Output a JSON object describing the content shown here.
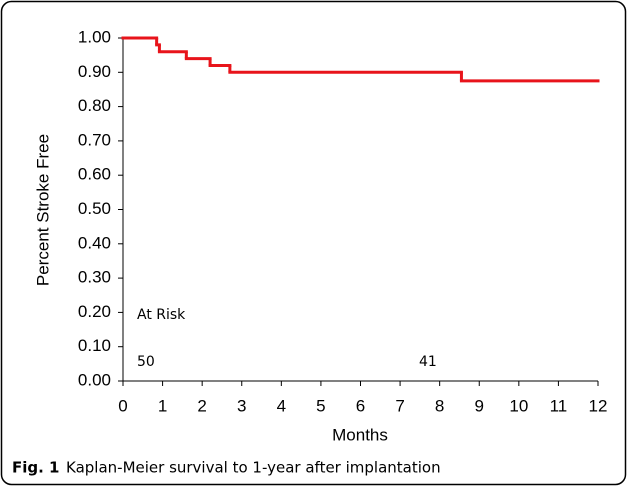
{
  "chart_data": {
    "type": "step",
    "ylabel": "Percent Stroke Free",
    "xlabel": "Months",
    "x": [
      0,
      0.85,
      0.92,
      1.6,
      2.2,
      2.7,
      8.55,
      12
    ],
    "series": [
      {
        "color": "#e8141b",
        "values": [
          1.0,
          0.98,
          0.96,
          0.94,
          0.92,
          0.9,
          0.875,
          0.875
        ]
      }
    ],
    "xlim": [
      0,
      12
    ],
    "xticks": [
      0,
      1,
      2,
      3,
      4,
      5,
      6,
      7,
      8,
      9,
      10,
      11,
      12
    ],
    "ylim": [
      0,
      1
    ],
    "yticks": [
      {
        "value": 0,
        "label": "0.00"
      },
      {
        "value": 0.1,
        "label": "0.10"
      },
      {
        "value": 0.2,
        "label": "0.20"
      },
      {
        "value": 0.3,
        "label": "0.30"
      },
      {
        "value": 0.4,
        "label": "0.40"
      },
      {
        "value": 0.5,
        "label": "0.50"
      },
      {
        "value": 0.6,
        "label": "0.60"
      },
      {
        "value": 0.7,
        "label": "0.70"
      },
      {
        "value": 0.8,
        "label": "0.80"
      },
      {
        "value": 0.9,
        "label": "0.90"
      },
      {
        "value": 1,
        "label": "1.00"
      }
    ],
    "annotations": [
      "At Risk",
      "50",
      "41"
    ],
    "caption": {
      "label": "Fig. 1",
      "text": "Kaplan-Meier survival to 1-year after implantation"
    }
  }
}
